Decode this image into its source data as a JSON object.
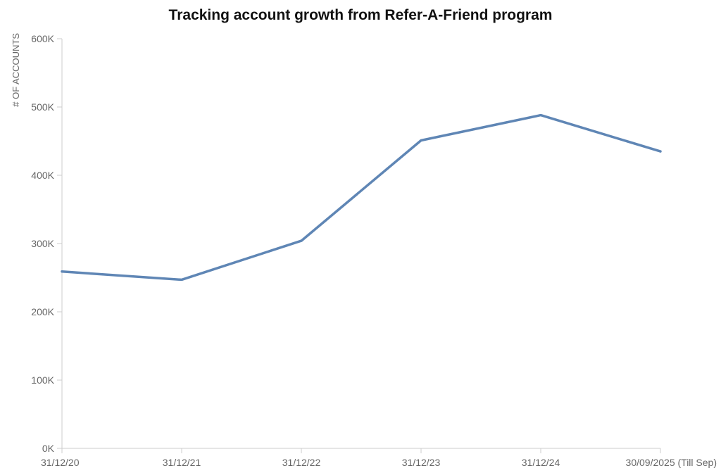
{
  "chart_data": {
    "type": "line",
    "title": "Tracking account growth from Refer-A-Friend program",
    "xlabel": "",
    "ylabel": "# OF ACCOUNTS",
    "categories": [
      "31/12/20",
      "31/12/21",
      "31/12/22",
      "31/12/23",
      "31/12/24",
      "30/09/2025 (Till Sep)"
    ],
    "series": [
      {
        "values": [
          259000,
          247000,
          304000,
          451000,
          488000,
          435000
        ]
      }
    ],
    "ylim": [
      0,
      600000
    ],
    "yticks": [
      0,
      100000,
      200000,
      300000,
      400000,
      500000,
      600000
    ],
    "ytick_labels": [
      "0K",
      "100K",
      "200K",
      "300K",
      "400K",
      "500K",
      "600K"
    ],
    "grid": false,
    "legend": "none",
    "colors": {
      "line": "#5f86b5",
      "axis": "#cccccc",
      "text": "#666666",
      "title": "#111111"
    }
  }
}
